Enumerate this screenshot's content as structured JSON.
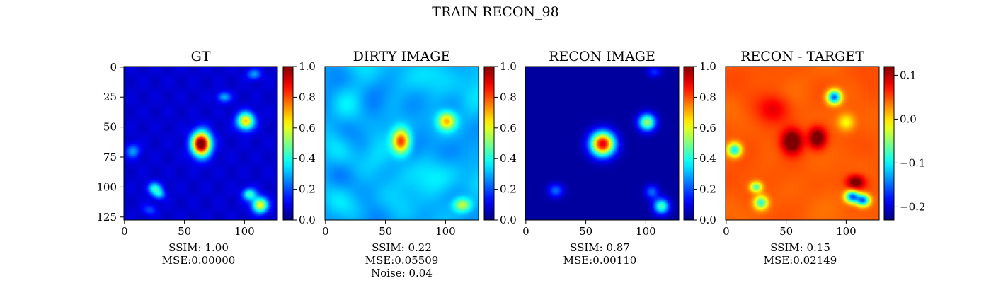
{
  "suptitle": "TRAIN RECON_98",
  "chart_data": [
    {
      "type": "heatmap",
      "title": "GT",
      "colormap": "jet",
      "x_ticks": [
        0,
        50,
        100
      ],
      "y_ticks": [
        0,
        25,
        50,
        75,
        100,
        125
      ],
      "image_range": [
        0,
        128
      ],
      "colorbar": {
        "min": 0.0,
        "max": 1.0,
        "ticks": [
          "0.0",
          "0.2",
          "0.4",
          "0.6",
          "0.8",
          "1.0"
        ]
      },
      "blobs": [
        {
          "x": 64,
          "y": 64,
          "amp": 1.0,
          "sx": 5.5,
          "sy": 7
        },
        {
          "x": 101,
          "y": 45,
          "amp": 0.6,
          "sx": 5,
          "sy": 5
        },
        {
          "x": 83,
          "y": 25,
          "amp": 0.22,
          "sx": 4,
          "sy": 3
        },
        {
          "x": 108,
          "y": 6,
          "amp": 0.2,
          "sx": 4,
          "sy": 3
        },
        {
          "x": 7,
          "y": 70,
          "amp": 0.2,
          "sx": 4,
          "sy": 4
        },
        {
          "x": 25,
          "y": 101,
          "amp": 0.3,
          "sx": 4,
          "sy": 3.5
        },
        {
          "x": 29,
          "y": 106,
          "amp": 0.22,
          "sx": 3.5,
          "sy": 3
        },
        {
          "x": 21,
          "y": 119,
          "amp": 0.12,
          "sx": 4,
          "sy": 3
        },
        {
          "x": 104,
          "y": 106,
          "amp": 0.35,
          "sx": 4,
          "sy": 3.5
        },
        {
          "x": 113,
          "y": 115,
          "amp": 0.55,
          "sx": 4.5,
          "sy": 4.5
        }
      ],
      "caption": [
        "SSIM: 1.00",
        "MSE:0.00000"
      ]
    },
    {
      "type": "heatmap",
      "title": "DIRTY IMAGE",
      "colormap": "jet",
      "x_ticks": [
        0,
        50,
        100
      ],
      "y_ticks": [],
      "image_range": [
        0,
        128
      ],
      "colorbar": {
        "min": 0.0,
        "max": 1.0,
        "ticks": [
          "0.0",
          "0.2",
          "0.4",
          "0.6",
          "0.8",
          "1.0"
        ]
      },
      "noise_level": 0.04,
      "blobs": [
        {
          "x": 63,
          "y": 62,
          "amp": 0.55,
          "sx": 5,
          "sy": 7
        },
        {
          "x": 101,
          "y": 45,
          "amp": 0.4,
          "sx": 5,
          "sy": 5
        },
        {
          "x": 114,
          "y": 115,
          "amp": 0.3,
          "sx": 5,
          "sy": 4
        }
      ],
      "caption": [
        "SSIM: 0.22",
        "MSE:0.05509",
        "Noise: 0.04"
      ]
    },
    {
      "type": "heatmap",
      "title": "RECON IMAGE",
      "colormap": "jet",
      "x_ticks": [
        0,
        50,
        100
      ],
      "y_ticks": [],
      "image_range": [
        0,
        128
      ],
      "colorbar": {
        "min": 0.0,
        "max": 1.0,
        "ticks": [
          "0.0",
          "0.2",
          "0.4",
          "0.6",
          "0.8",
          "1.0"
        ]
      },
      "blobs": [
        {
          "x": 64,
          "y": 64,
          "amp": 0.88,
          "sx": 7,
          "sy": 7
        },
        {
          "x": 101,
          "y": 46,
          "amp": 0.5,
          "sx": 5,
          "sy": 5
        },
        {
          "x": 25,
          "y": 103,
          "amp": 0.2,
          "sx": 4.5,
          "sy": 4
        },
        {
          "x": 105,
          "y": 104,
          "amp": 0.2,
          "sx": 4,
          "sy": 4
        },
        {
          "x": 113,
          "y": 116,
          "amp": 0.42,
          "sx": 4.5,
          "sy": 4.5
        },
        {
          "x": 107,
          "y": 4,
          "amp": 0.14,
          "sx": 4,
          "sy": 3
        }
      ],
      "caption": [
        "SSIM: 0.87",
        "MSE:0.00110"
      ]
    },
    {
      "type": "heatmap",
      "title": "RECON - TARGET",
      "colormap": "jet",
      "x_ticks": [
        0,
        50,
        100
      ],
      "y_ticks": [],
      "image_range": [
        0,
        128
      ],
      "colorbar": {
        "min": -0.23,
        "max": 0.12,
        "ticks": [
          "−0.2",
          "−0.1",
          "0.0",
          "0.1"
        ],
        "tick_values": [
          -0.2,
          -0.1,
          0.0,
          0.1
        ]
      },
      "blobs": [
        {
          "x": 55,
          "y": 62,
          "amp": 0.11,
          "sx": 6,
          "sy": 7
        },
        {
          "x": 76,
          "y": 59,
          "amp": 0.1,
          "sx": 5,
          "sy": 6
        },
        {
          "x": 90,
          "y": 25,
          "amp": -0.2,
          "sx": 4,
          "sy": 4
        },
        {
          "x": 7,
          "y": 69,
          "amp": -0.15,
          "sx": 4,
          "sy": 4
        },
        {
          "x": 25,
          "y": 100,
          "amp": -0.12,
          "sx": 3.5,
          "sy": 3
        },
        {
          "x": 29,
          "y": 113,
          "amp": -0.13,
          "sx": 4,
          "sy": 4
        },
        {
          "x": 108,
          "y": 96,
          "amp": 0.09,
          "sx": 5,
          "sy": 4
        },
        {
          "x": 105,
          "y": 108,
          "amp": -0.2,
          "sx": 4,
          "sy": 3.5
        },
        {
          "x": 114,
          "y": 111,
          "amp": -0.2,
          "sx": 4,
          "sy": 3.5
        },
        {
          "x": 100,
          "y": 46,
          "amp": -0.06,
          "sx": 5,
          "sy": 5
        },
        {
          "x": 40,
          "y": 35,
          "amp": 0.04,
          "sx": 9,
          "sy": 8
        }
      ],
      "caption": [
        "SSIM: 0.15",
        "MSE:0.02149"
      ]
    }
  ]
}
